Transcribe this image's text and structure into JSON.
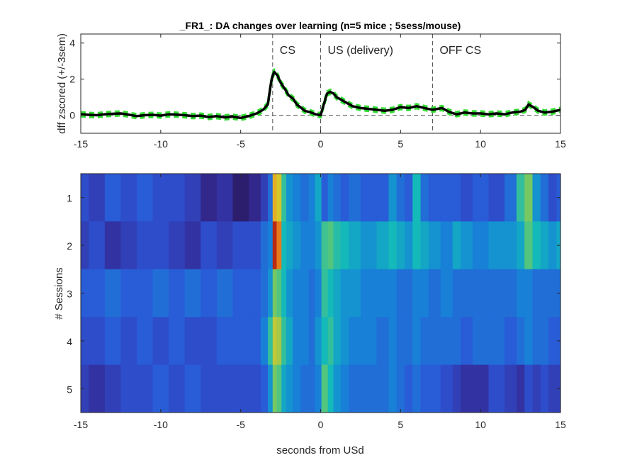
{
  "figure": {
    "title": "_FR1_: DA changes over learning  (n=5 mice ; 5sess/mouse)"
  },
  "colors": {
    "mean_line": "#000000",
    "sem_band": "#33dd33",
    "event_line": "#555555",
    "axes": "#262626"
  },
  "chart_data": [
    {
      "type": "line",
      "ylabel": "dff zscored (+/-3sem)",
      "xlim": [
        -15,
        15
      ],
      "ylim": [
        -1,
        4.5
      ],
      "xticks": [
        -15,
        -10,
        -5,
        0,
        5,
        10,
        15
      ],
      "yticks": [
        0,
        2,
        4
      ],
      "grid": false,
      "event_markers": [
        {
          "x": -3,
          "label": "CS"
        },
        {
          "x": 0,
          "label": "US (delivery)"
        },
        {
          "x": 7,
          "label": "OFF CS"
        }
      ],
      "zero_line": true,
      "series": [
        {
          "x": [
            -15,
            -14.5,
            -14,
            -13.5,
            -13,
            -12.5,
            -12,
            -11.5,
            -11,
            -10.5,
            -10,
            -9.5,
            -9,
            -8.5,
            -8,
            -7.5,
            -7,
            -6.5,
            -6,
            -5.5,
            -5,
            -4.5,
            -4,
            -3.6,
            -3.3,
            -3.1,
            -3.0,
            -2.9,
            -2.7,
            -2.5,
            -2.2,
            -2.0,
            -1.7,
            -1.5,
            -1.2,
            -1.0,
            -0.6,
            -0.3,
            0,
            0.2,
            0.4,
            0.6,
            0.8,
            1.0,
            1.3,
            1.6,
            2.0,
            2.5,
            3,
            3.5,
            4,
            4.5,
            5,
            5.5,
            6,
            6.5,
            7,
            7.3,
            7.6,
            8,
            8.5,
            9,
            9.5,
            10,
            10.5,
            11,
            11.5,
            12,
            12.5,
            12.8,
            13,
            13.3,
            13.6,
            14,
            14.5,
            15
          ],
          "y": [
            0.05,
            0.02,
            0.0,
            0.05,
            0.08,
            0.1,
            0.03,
            -0.05,
            0.0,
            0.02,
            -0.02,
            0.05,
            0.03,
            0.0,
            -0.05,
            -0.02,
            -0.1,
            -0.05,
            -0.12,
            -0.08,
            -0.15,
            -0.05,
            0.1,
            0.3,
            0.6,
            1.8,
            2.2,
            2.4,
            2.2,
            1.8,
            1.4,
            1.1,
            0.9,
            0.6,
            0.4,
            0.25,
            0.15,
            0.05,
            0.0,
            0.6,
            1.2,
            1.3,
            1.2,
            1.0,
            0.85,
            0.7,
            0.5,
            0.4,
            0.35,
            0.3,
            0.25,
            0.3,
            0.45,
            0.4,
            0.5,
            0.4,
            0.3,
            0.35,
            0.4,
            0.2,
            0.05,
            0.15,
            0.1,
            0.1,
            0.05,
            0.1,
            0.05,
            0.15,
            0.2,
            0.3,
            0.6,
            0.45,
            0.25,
            0.15,
            0.2,
            0.3
          ],
          "sem": 0.12
        }
      ]
    },
    {
      "type": "heatmap",
      "xlabel": "seconds from USd",
      "ylabel": "# Sessions",
      "xlim": [
        -15,
        15
      ],
      "xticks": [
        -15,
        -10,
        -5,
        0,
        5,
        10,
        15
      ],
      "rows": [
        "1",
        "2",
        "3",
        "4",
        "5"
      ],
      "colormap": "parula-like",
      "x": [
        -15,
        -14,
        -13,
        -12,
        -11,
        -10,
        -9,
        -8,
        -7,
        -6,
        -5,
        -4,
        -3.5,
        -3.1,
        -2.9,
        -2.6,
        -2.3,
        -2,
        -1.5,
        -1,
        -0.5,
        -0.2,
        0.3,
        0.6,
        1,
        1.5,
        2,
        3,
        4,
        4.5,
        5,
        5.5,
        6,
        6.5,
        7,
        8,
        8.5,
        9,
        10,
        11,
        12,
        12.5,
        13,
        13.5,
        14,
        14.5,
        15
      ],
      "values": [
        [
          0.25,
          0.2,
          0.3,
          0.25,
          0.3,
          0.25,
          0.25,
          0.2,
          0.1,
          0.15,
          0.05,
          0.1,
          0.2,
          0.35,
          0.85,
          0.8,
          0.6,
          0.45,
          0.4,
          0.35,
          0.4,
          0.5,
          0.3,
          0.4,
          0.35,
          0.3,
          0.35,
          0.3,
          0.3,
          0.45,
          0.35,
          0.3,
          0.55,
          0.35,
          0.3,
          0.3,
          0.3,
          0.25,
          0.3,
          0.25,
          0.35,
          0.6,
          0.7,
          0.45,
          0.35,
          0.25,
          0.3
        ],
        [
          0.2,
          0.25,
          0.15,
          0.2,
          0.25,
          0.25,
          0.2,
          0.15,
          0.25,
          0.2,
          0.25,
          0.25,
          0.35,
          0.4,
          0.98,
          0.92,
          0.55,
          0.5,
          0.45,
          0.4,
          0.4,
          0.45,
          0.62,
          0.65,
          0.58,
          0.55,
          0.5,
          0.45,
          0.5,
          0.55,
          0.5,
          0.45,
          0.55,
          0.5,
          0.45,
          0.4,
          0.5,
          0.45,
          0.4,
          0.45,
          0.45,
          0.5,
          0.65,
          0.55,
          0.5,
          0.45,
          0.5
        ],
        [
          0.3,
          0.3,
          0.35,
          0.3,
          0.3,
          0.35,
          0.3,
          0.35,
          0.3,
          0.35,
          0.3,
          0.3,
          0.35,
          0.45,
          0.7,
          0.65,
          0.55,
          0.45,
          0.4,
          0.4,
          0.35,
          0.4,
          0.6,
          0.55,
          0.5,
          0.45,
          0.45,
          0.4,
          0.4,
          0.4,
          0.35,
          0.35,
          0.4,
          0.4,
          0.35,
          0.4,
          0.35,
          0.35,
          0.35,
          0.35,
          0.35,
          0.4,
          0.4,
          0.35,
          0.35,
          0.35,
          0.35
        ],
        [
          0.25,
          0.25,
          0.3,
          0.25,
          0.3,
          0.25,
          0.3,
          0.25,
          0.25,
          0.3,
          0.3,
          0.3,
          0.4,
          0.6,
          0.78,
          0.75,
          0.6,
          0.5,
          0.4,
          0.4,
          0.35,
          0.45,
          0.55,
          0.6,
          0.5,
          0.45,
          0.4,
          0.4,
          0.35,
          0.4,
          0.35,
          0.35,
          0.4,
          0.35,
          0.35,
          0.35,
          0.35,
          0.3,
          0.35,
          0.35,
          0.3,
          0.35,
          0.4,
          0.35,
          0.35,
          0.3,
          0.3
        ],
        [
          0.2,
          0.15,
          0.2,
          0.25,
          0.25,
          0.3,
          0.25,
          0.3,
          0.25,
          0.25,
          0.25,
          0.25,
          0.3,
          0.45,
          0.7,
          0.65,
          0.5,
          0.45,
          0.4,
          0.35,
          0.35,
          0.4,
          0.65,
          0.55,
          0.45,
          0.4,
          0.35,
          0.35,
          0.35,
          0.4,
          0.35,
          0.3,
          0.35,
          0.3,
          0.3,
          0.25,
          0.2,
          0.15,
          0.15,
          0.25,
          0.2,
          0.15,
          0.25,
          0.2,
          0.25,
          0.2,
          0.2
        ]
      ]
    }
  ]
}
